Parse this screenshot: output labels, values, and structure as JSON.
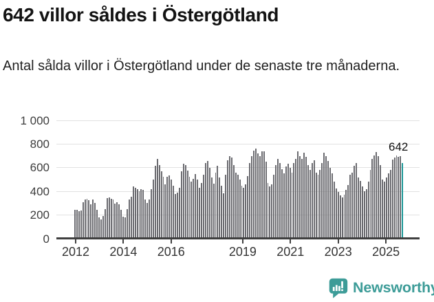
{
  "title": "642 villor såldes i Östergötland",
  "subtitle": "Antal sålda villor i Östergötland under de senaste tre månaderna.",
  "annotation": {
    "text": "642"
  },
  "footer": {
    "brand": "Newsworthy",
    "logo_icon": "newsworthy-chart-bubble-icon"
  },
  "colors": {
    "bar": "#6b6b70",
    "highlight": "#1a9696",
    "axis": "#3f3f3f",
    "grid": "#e1e1e1",
    "brand": "#3d9c98",
    "text": "#131313",
    "tick_text": "#333333"
  },
  "chart_data": {
    "type": "bar",
    "title": "642 villor såldes i Östergötland",
    "subtitle": "Antal sålda villor i Östergötland under de senaste tre månaderna.",
    "ylabel": "",
    "xlabel": "",
    "unit": "antal sålda villor, rullande tre månader",
    "frequency": "monthly",
    "x_start": "2012-01",
    "x_end": "2025-08",
    "ylim": [
      0,
      1000
    ],
    "yticks": [
      0,
      200,
      400,
      600,
      800,
      1000
    ],
    "ytick_labels": [
      "0",
      "200",
      "400",
      "600",
      "800",
      "1 000"
    ],
    "xtick_years": [
      2012,
      2014,
      2016,
      2019,
      2021,
      2023,
      2025
    ],
    "grid": "horizontal",
    "legend": "none",
    "highlight_last": true,
    "last_value_label": "642",
    "values": [
      242,
      246,
      230,
      240,
      310,
      332,
      338,
      324,
      292,
      334,
      300,
      246,
      180,
      162,
      192,
      250,
      344,
      350,
      340,
      330,
      298,
      310,
      290,
      246,
      186,
      182,
      250,
      330,
      356,
      440,
      430,
      416,
      400,
      420,
      410,
      332,
      300,
      332,
      420,
      500,
      616,
      672,
      620,
      570,
      522,
      458,
      522,
      536,
      502,
      446,
      376,
      390,
      430,
      570,
      634,
      620,
      576,
      525,
      480,
      508,
      545,
      498,
      430,
      470,
      540,
      640,
      656,
      598,
      520,
      466,
      560,
      616,
      520,
      445,
      384,
      540,
      660,
      700,
      688,
      620,
      558,
      540,
      498,
      445,
      430,
      462,
      530,
      640,
      700,
      745,
      760,
      722,
      700,
      740,
      736,
      650,
      470,
      440,
      460,
      540,
      625,
      672,
      640,
      585,
      555,
      613,
      633,
      600,
      560,
      640,
      672,
      740,
      700,
      676,
      724,
      690,
      620,
      580,
      640,
      660,
      560,
      540,
      580,
      640,
      724,
      700,
      656,
      600,
      550,
      481,
      423,
      394,
      365,
      350,
      375,
      414,
      452,
      540,
      560,
      617,
      641,
      520,
      491,
      440,
      404,
      420,
      480,
      580,
      676,
      705,
      734,
      700,
      620,
      500,
      481,
      520,
      550,
      579,
      666,
      686,
      705,
      690,
      700,
      642
    ]
  }
}
